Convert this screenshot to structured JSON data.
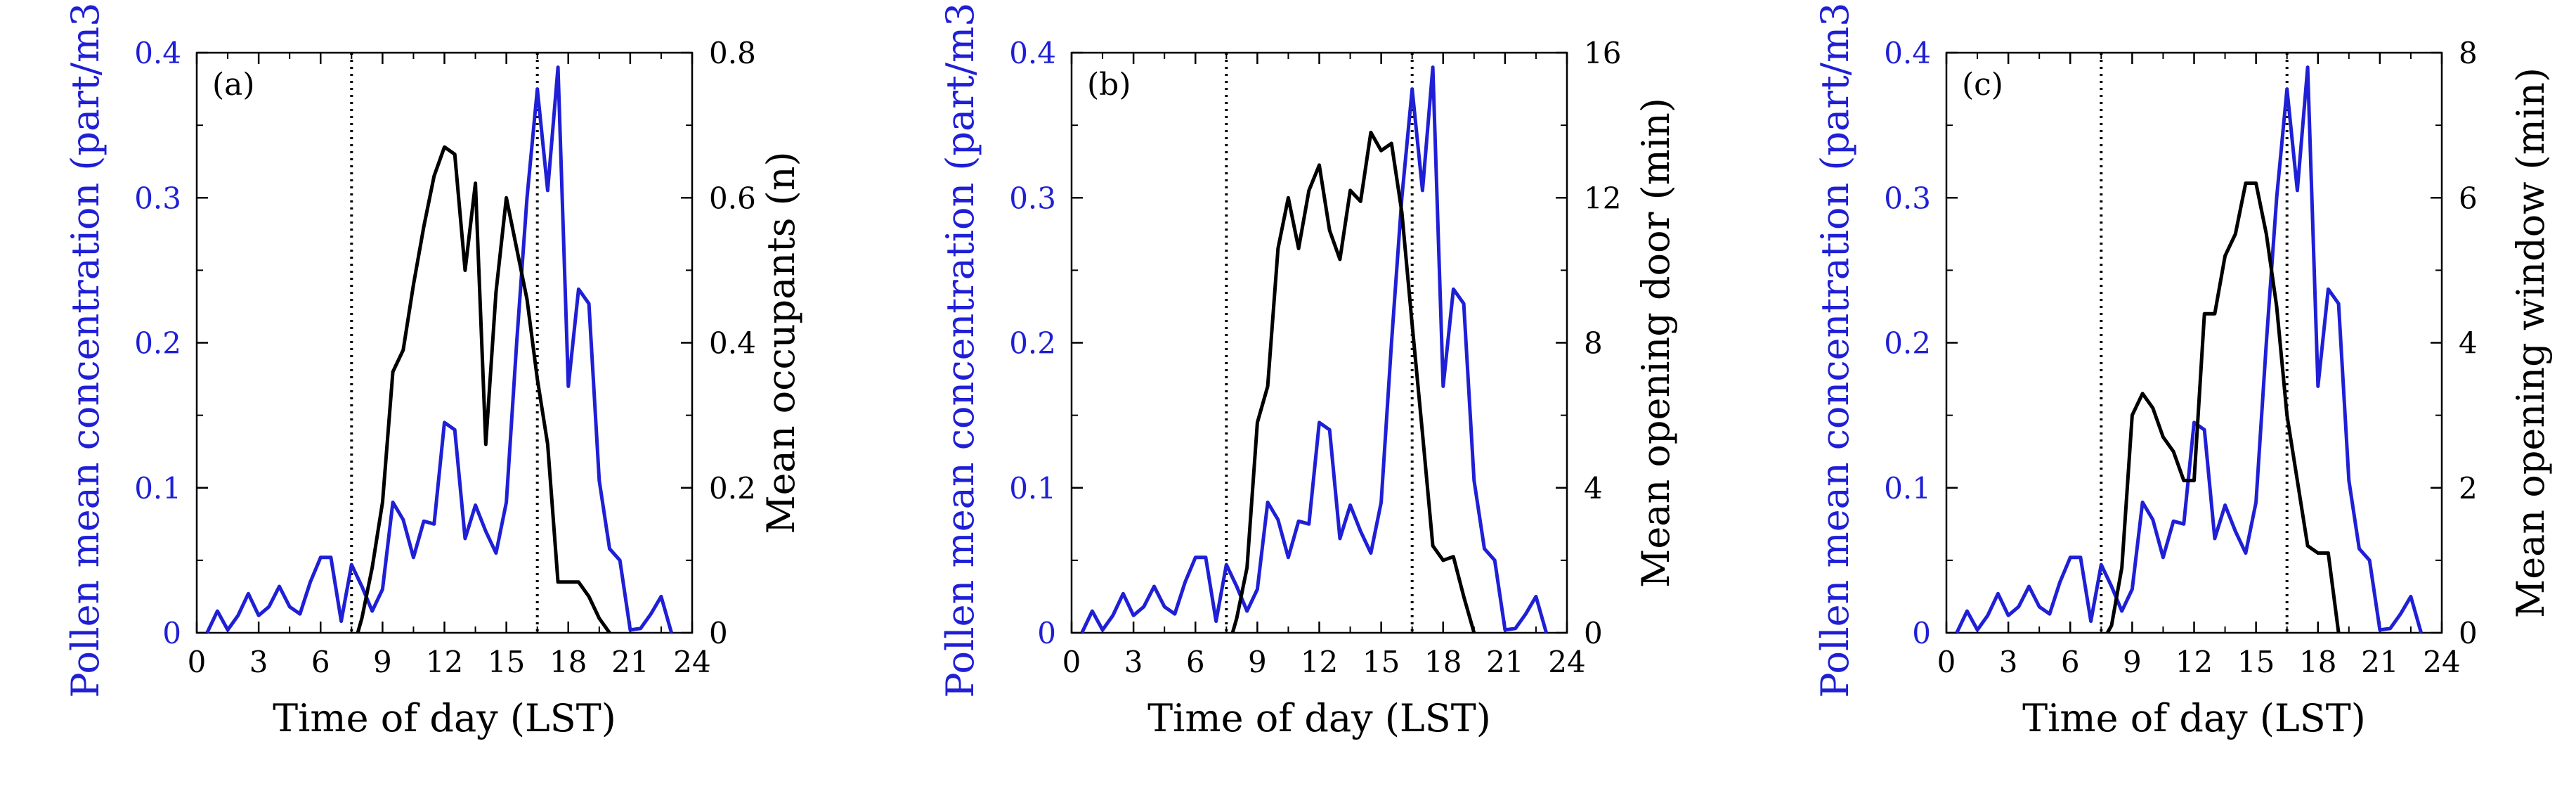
{
  "figure": {
    "colors": {
      "pollen": "#1f1fd6",
      "activity": "#000000",
      "axis": "#000000"
    }
  },
  "chart_data": [
    {
      "type": "line",
      "panel_label": "(a)",
      "xlabel": "Time of day (LST)",
      "ylabel_left": "Pollen mean concentration (part/m3)",
      "ylabel_right": "Mean occupants (n)",
      "xlim": [
        0,
        24
      ],
      "xticks": [
        0,
        3,
        6,
        9,
        12,
        15,
        18,
        21,
        24
      ],
      "ylim_left": [
        0,
        0.4
      ],
      "yticks_left": [
        "0",
        "0.1",
        "0.2",
        "0.3",
        "0.4"
      ],
      "ylim_right": [
        0,
        0.8
      ],
      "yticks_right": [
        "0",
        "0.2",
        "0.4",
        "0.6",
        "0.8"
      ],
      "vlines": [
        7.5,
        16.5
      ],
      "series": [
        {
          "name": "Pollen mean concentration",
          "axis": "left",
          "color": "#1f1fd6",
          "x": [
            0.5,
            1,
            1.5,
            2,
            2.5,
            3,
            3.5,
            4,
            4.5,
            5,
            5.5,
            6,
            6.5,
            7,
            7.5,
            8,
            8.5,
            9,
            9.5,
            10,
            10.5,
            11,
            11.5,
            12,
            12.5,
            13,
            13.5,
            14,
            14.5,
            15,
            15.5,
            16,
            16.5,
            17,
            17.5,
            18,
            18.5,
            19,
            19.5,
            20,
            20.5,
            21,
            21.5,
            22,
            22.5,
            23
          ],
          "y": [
            0,
            0.015,
            0.002,
            0.012,
            0.027,
            0.012,
            0.018,
            0.032,
            0.018,
            0.013,
            0.035,
            0.052,
            0.052,
            0.008,
            0.047,
            0.032,
            0.015,
            0.03,
            0.09,
            0.078,
            0.052,
            0.077,
            0.075,
            0.145,
            0.14,
            0.065,
            0.088,
            0.07,
            0.055,
            0.09,
            0.2,
            0.3,
            0.375,
            0.305,
            0.39,
            0.17,
            0.237,
            0.227,
            0.105,
            0.058,
            0.05,
            0.002,
            0.003,
            0.013,
            0.025,
            0
          ]
        },
        {
          "name": "Mean occupants",
          "axis": "right",
          "color": "#000000",
          "x": [
            7.8,
            8,
            8.5,
            9,
            9.5,
            10,
            10.5,
            11,
            11.5,
            12,
            12.5,
            13,
            13.5,
            14,
            14.5,
            15,
            15.5,
            16,
            16.5,
            17,
            17.5,
            18,
            18.5,
            19,
            19.5,
            20
          ],
          "y": [
            0,
            0.02,
            0.09,
            0.18,
            0.36,
            0.39,
            0.48,
            0.56,
            0.63,
            0.67,
            0.66,
            0.5,
            0.62,
            0.26,
            0.47,
            0.6,
            0.53,
            0.46,
            0.35,
            0.26,
            0.07,
            0.07,
            0.07,
            0.05,
            0.02,
            0
          ]
        }
      ]
    },
    {
      "type": "line",
      "panel_label": "(b)",
      "xlabel": "Time of day (LST)",
      "ylabel_left": "Pollen mean concentration (part/m3)",
      "ylabel_right": "Mean opening door (min)",
      "xlim": [
        0,
        24
      ],
      "xticks": [
        0,
        3,
        6,
        9,
        12,
        15,
        18,
        21,
        24
      ],
      "ylim_left": [
        0,
        0.4
      ],
      "yticks_left": [
        "0",
        "0.1",
        "0.2",
        "0.3",
        "0.4"
      ],
      "ylim_right": [
        0,
        16
      ],
      "yticks_right": [
        "0",
        "4",
        "8",
        "12",
        "16"
      ],
      "vlines": [
        7.5,
        16.5
      ],
      "series": [
        {
          "name": "Pollen mean concentration",
          "axis": "left",
          "color": "#1f1fd6",
          "x": [
            0.5,
            1,
            1.5,
            2,
            2.5,
            3,
            3.5,
            4,
            4.5,
            5,
            5.5,
            6,
            6.5,
            7,
            7.5,
            8,
            8.5,
            9,
            9.5,
            10,
            10.5,
            11,
            11.5,
            12,
            12.5,
            13,
            13.5,
            14,
            14.5,
            15,
            15.5,
            16,
            16.5,
            17,
            17.5,
            18,
            18.5,
            19,
            19.5,
            20,
            20.5,
            21,
            21.5,
            22,
            22.5,
            23
          ],
          "y": [
            0,
            0.015,
            0.002,
            0.012,
            0.027,
            0.012,
            0.018,
            0.032,
            0.018,
            0.013,
            0.035,
            0.052,
            0.052,
            0.008,
            0.047,
            0.032,
            0.015,
            0.03,
            0.09,
            0.078,
            0.052,
            0.077,
            0.075,
            0.145,
            0.14,
            0.065,
            0.088,
            0.07,
            0.055,
            0.09,
            0.2,
            0.3,
            0.375,
            0.305,
            0.39,
            0.17,
            0.237,
            0.227,
            0.105,
            0.058,
            0.05,
            0.002,
            0.003,
            0.013,
            0.025,
            0
          ]
        },
        {
          "name": "Mean opening door",
          "axis": "right",
          "color": "#000000",
          "x": [
            7.8,
            8,
            8.5,
            9,
            9.5,
            10,
            10.5,
            11,
            11.5,
            12,
            12.5,
            13,
            13.5,
            14,
            14.5,
            15,
            15.5,
            16,
            16.5,
            17,
            17.5,
            18,
            18.5,
            19,
            19.5
          ],
          "y": [
            0,
            0.4,
            1.8,
            5.8,
            6.8,
            10.6,
            12,
            10.6,
            12.2,
            12.9,
            11.1,
            10.3,
            12.2,
            11.9,
            13.8,
            13.3,
            13.5,
            11.6,
            8.5,
            5.5,
            2.4,
            2.0,
            2.1,
            1.0,
            0
          ]
        }
      ]
    },
    {
      "type": "line",
      "panel_label": "(c)",
      "xlabel": "Time of day (LST)",
      "ylabel_left": "Pollen mean concentration (part/m3)",
      "ylabel_right": "Mean opening window (min)",
      "xlim": [
        0,
        24
      ],
      "xticks": [
        0,
        3,
        6,
        9,
        12,
        15,
        18,
        21,
        24
      ],
      "ylim_left": [
        0,
        0.4
      ],
      "yticks_left": [
        "0",
        "0.1",
        "0.2",
        "0.3",
        "0.4"
      ],
      "ylim_right": [
        0,
        8
      ],
      "yticks_right": [
        "0",
        "2",
        "4",
        "6",
        "8"
      ],
      "vlines": [
        7.5,
        16.5
      ],
      "series": [
        {
          "name": "Pollen mean concentration",
          "axis": "left",
          "color": "#1f1fd6",
          "x": [
            0.5,
            1,
            1.5,
            2,
            2.5,
            3,
            3.5,
            4,
            4.5,
            5,
            5.5,
            6,
            6.5,
            7,
            7.5,
            8,
            8.5,
            9,
            9.5,
            10,
            10.5,
            11,
            11.5,
            12,
            12.5,
            13,
            13.5,
            14,
            14.5,
            15,
            15.5,
            16,
            16.5,
            17,
            17.5,
            18,
            18.5,
            19,
            19.5,
            20,
            20.5,
            21,
            21.5,
            22,
            22.5,
            23
          ],
          "y": [
            0,
            0.015,
            0.002,
            0.012,
            0.027,
            0.012,
            0.018,
            0.032,
            0.018,
            0.013,
            0.035,
            0.052,
            0.052,
            0.008,
            0.047,
            0.032,
            0.015,
            0.03,
            0.09,
            0.078,
            0.052,
            0.077,
            0.075,
            0.145,
            0.14,
            0.065,
            0.088,
            0.07,
            0.055,
            0.09,
            0.2,
            0.3,
            0.375,
            0.305,
            0.39,
            0.17,
            0.237,
            0.227,
            0.105,
            0.058,
            0.05,
            0.002,
            0.003,
            0.013,
            0.025,
            0
          ]
        },
        {
          "name": "Mean opening window",
          "axis": "right",
          "color": "#000000",
          "x": [
            7.8,
            8,
            8.5,
            9,
            9.5,
            10,
            10.5,
            11,
            11.5,
            12,
            12.5,
            13,
            13.5,
            14,
            14.5,
            15,
            15.5,
            16,
            16.5,
            17,
            17.5,
            18,
            18.5,
            19
          ],
          "y": [
            0,
            0.1,
            0.9,
            3.0,
            3.3,
            3.1,
            2.7,
            2.5,
            2.1,
            2.1,
            4.4,
            4.4,
            5.2,
            5.5,
            6.2,
            6.2,
            5.5,
            4.5,
            3.0,
            2.1,
            1.2,
            1.1,
            1.1,
            0
          ]
        }
      ]
    }
  ]
}
